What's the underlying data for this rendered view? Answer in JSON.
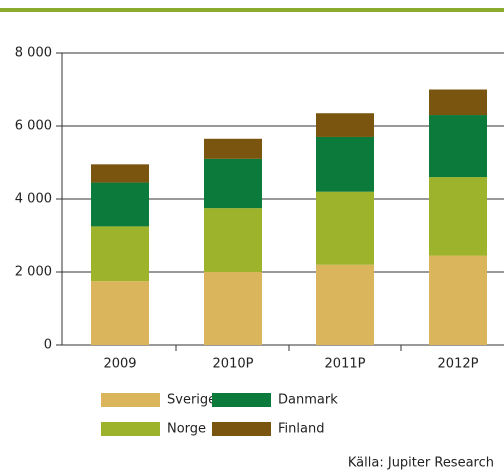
{
  "chart_data": {
    "type": "stacked_bar",
    "categories": [
      "2009",
      "2010P",
      "2011P",
      "2012P"
    ],
    "series": [
      {
        "name": "Sverige",
        "color": "#dbb55c",
        "values": [
          1750,
          2000,
          2200,
          2450
        ]
      },
      {
        "name": "Norge",
        "color": "#9cb32b",
        "values": [
          1500,
          1750,
          2000,
          2150
        ]
      },
      {
        "name": "Danmark",
        "color": "#0b7a3b",
        "values": [
          1200,
          1350,
          1500,
          1700
        ]
      },
      {
        "name": "Finland",
        "color": "#7a5510",
        "values": [
          500,
          550,
          650,
          700
        ]
      }
    ],
    "ylim": [
      0,
      8000
    ],
    "yticks": [
      0,
      {
        "value": 2000,
        "label": "2 000"
      },
      {
        "value": 4000,
        "label": "4 000"
      },
      {
        "value": 6000,
        "label": "6 000"
      },
      {
        "value": 8000,
        "label": "8 000"
      }
    ],
    "grid": true,
    "source": "Källa: Jupiter Research"
  }
}
